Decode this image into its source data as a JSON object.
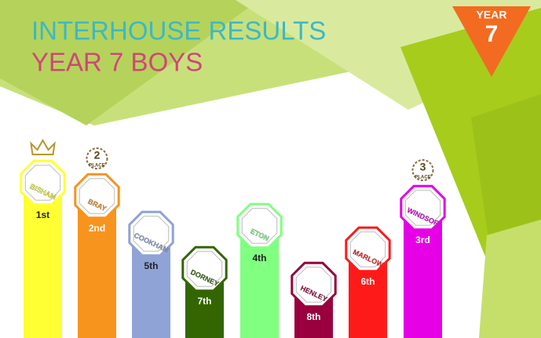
{
  "header": {
    "title": "INTERHOUSE RESULTS",
    "subtitle": "YEAR 7 BOYS"
  },
  "badge": {
    "label": "YEAR",
    "year": 7
  },
  "houses": [
    {
      "name": "BISHAM",
      "place": "1st",
      "color": "#ffff33"
    },
    {
      "name": "BRAY",
      "place": "2nd",
      "color": "#f7941d",
      "award": {
        "number": 2,
        "label": "PLACE"
      }
    },
    {
      "name": "COOKHAM",
      "place": "5th",
      "color": "#8fa3d6"
    },
    {
      "name": "DORNEY",
      "place": "7th",
      "color": "#336600"
    },
    {
      "name": "ETON",
      "place": "4th",
      "color": "#80ff80"
    },
    {
      "name": "HENLEY",
      "place": "8th",
      "color": "#99003d"
    },
    {
      "name": "MARLOW",
      "place": "6th",
      "color": "#ff1a1a"
    },
    {
      "name": "WINDSOR",
      "place": "3rd",
      "color": "#e600e6",
      "award": {
        "number": 3,
        "label": "PLACE"
      }
    }
  ]
}
